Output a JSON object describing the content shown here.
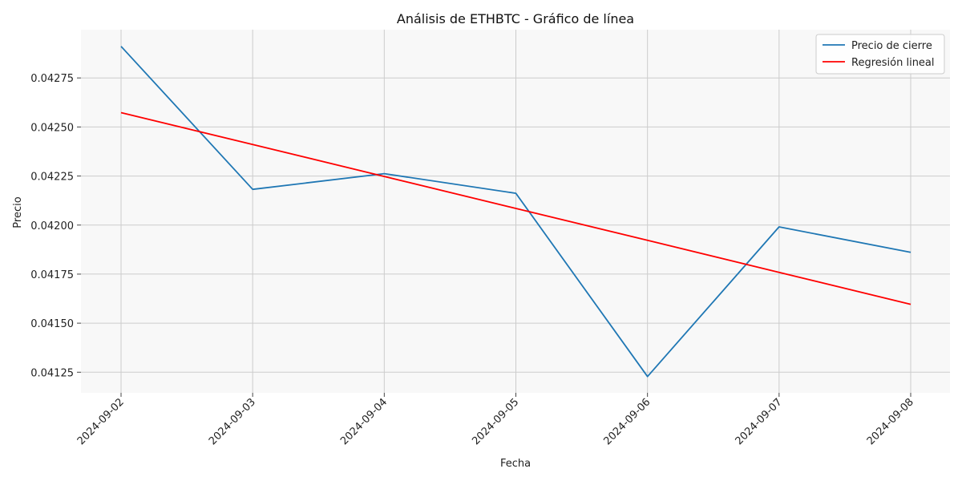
{
  "chart_data": {
    "type": "line",
    "title": "Análisis de ETHBTC - Gráfico de línea",
    "xlabel": "Fecha",
    "ylabel": "Precio",
    "categories": [
      "2024-09-02",
      "2024-09-03",
      "2024-09-04",
      "2024-09-05",
      "2024-09-06",
      "2024-09-07",
      "2024-09-08"
    ],
    "series": [
      {
        "name": "Precio de cierre",
        "color": "#1f77b4",
        "values": [
          0.042911,
          0.042182,
          0.042262,
          0.042162,
          0.041228,
          0.041991,
          0.041861
        ]
      },
      {
        "name": "Regresión lineal",
        "color": "#ff0000",
        "values": [
          0.042573,
          0.042411,
          0.042248,
          0.042085,
          0.041922,
          0.041759,
          0.041596
        ]
      }
    ],
    "yticks": [
      "0.04125",
      "0.04150",
      "0.04175",
      "0.04200",
      "0.04225",
      "0.04250",
      "0.04275"
    ],
    "ylim": [
      0.041145,
      0.042996
    ],
    "grid": true,
    "legend_position": "top-right",
    "plot_background": "#f8f8f8",
    "grid_color": "#cccccc"
  }
}
